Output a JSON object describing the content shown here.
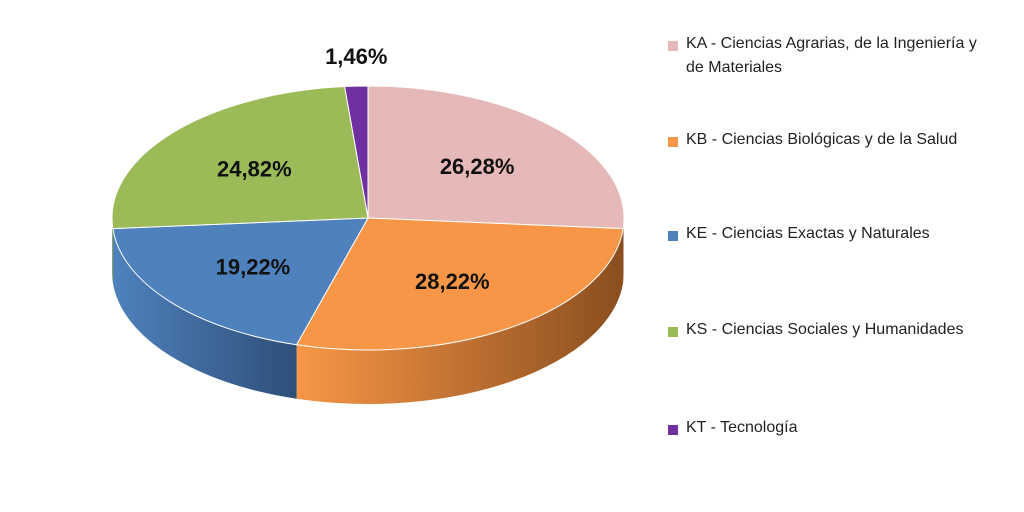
{
  "chart_data": {
    "type": "pie",
    "title": "",
    "legend_position": "right",
    "categories": [
      "KA - Ciencias Agrarias, de la Ingeniería y de Materiales",
      "KB - Ciencias Biológicas y de la Salud",
      "KE - Ciencias Exactas y Naturales",
      "KS - Ciencias Sociales y Humanidades",
      "KT - Tecnología"
    ],
    "values": [
      26.28,
      28.22,
      19.22,
      24.82,
      1.46
    ],
    "labels": [
      "26,28%",
      "28,22%",
      "19,22%",
      "24,82%",
      "1,46%"
    ],
    "colors": [
      "#e6b9b8",
      "#f79646",
      "#4f81bd",
      "#9bbb59",
      "#7030a0"
    ],
    "side_colors": [
      "#b58f8e",
      "#8a4e1f",
      "#2e4f78",
      "#5e7a2f",
      "#4a1b70"
    ]
  }
}
